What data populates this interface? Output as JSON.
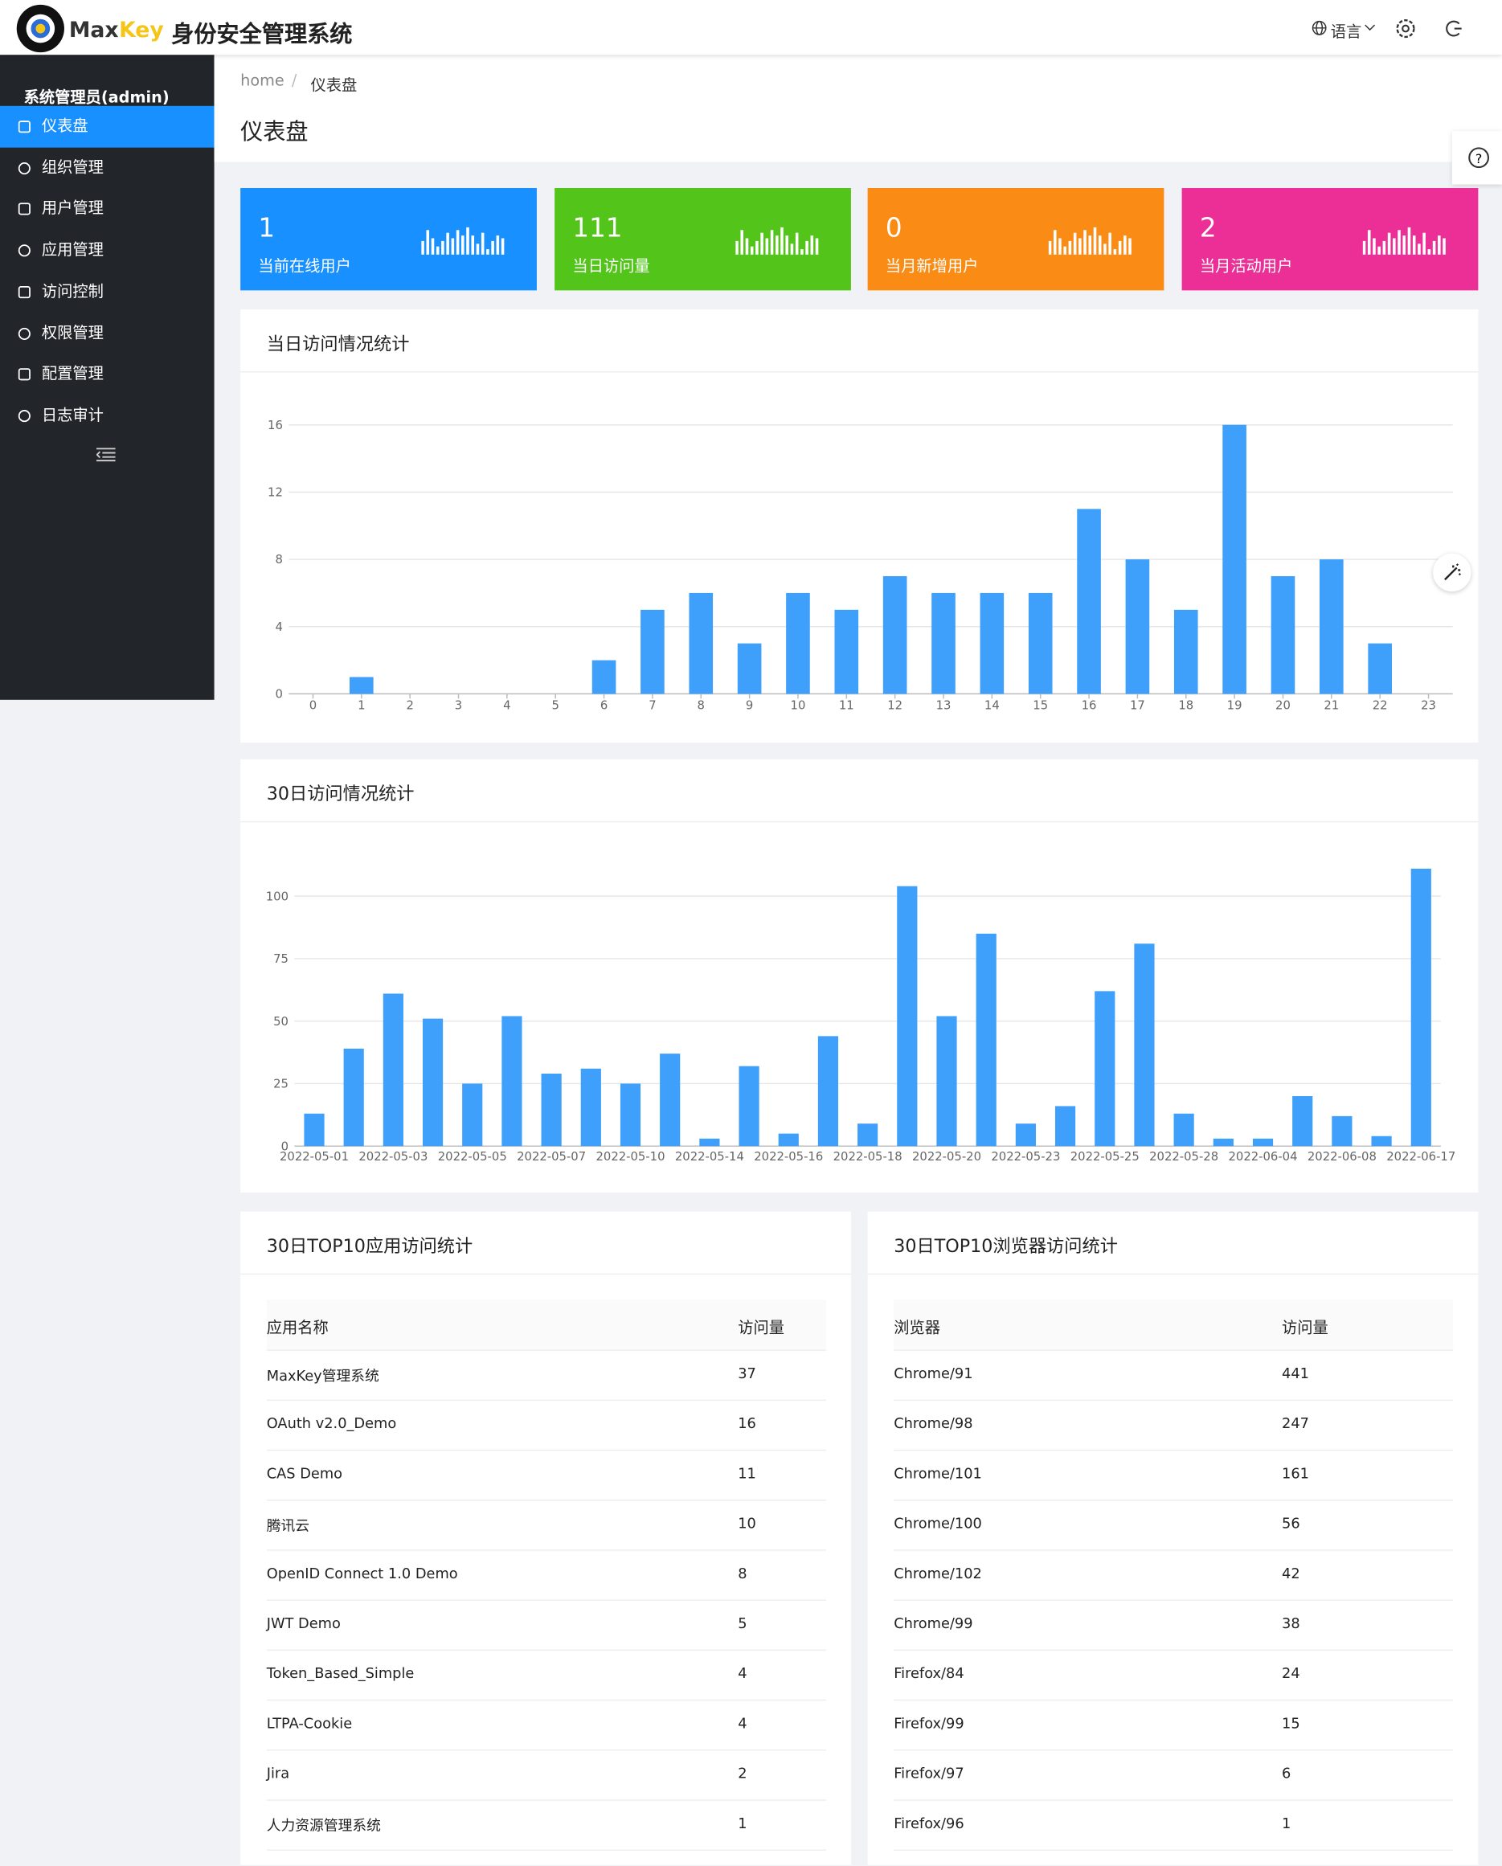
{
  "header": {
    "logo_max": "Max",
    "logo_key": "Key",
    "title": "身份安全管理系统",
    "language": "语言"
  },
  "sidebar": {
    "user": "系统管理员(admin)",
    "menu": [
      "仪表盘",
      "组织管理",
      "用户管理",
      "应用管理",
      "访问控制",
      "权限管理",
      "配置管理",
      "日志审计"
    ]
  },
  "breadcrumb": [
    "home",
    "仪表盘"
  ],
  "page_title": "仪表盘",
  "cards": [
    {
      "value": "1",
      "label": "当前在线用户",
      "color": "#1890ff"
    },
    {
      "value": "111",
      "label": "当日访问量",
      "color": "#52c41a"
    },
    {
      "value": "0",
      "label": "当月新增用户",
      "color": "#fa8c16"
    },
    {
      "value": "2",
      "label": "当月活动用户",
      "color": "#eb2f96"
    }
  ],
  "chart_data": [
    {
      "type": "bar",
      "title": "当日访问情况统计",
      "categories": [
        "0",
        "1",
        "2",
        "3",
        "4",
        "5",
        "6",
        "7",
        "8",
        "9",
        "10",
        "11",
        "12",
        "13",
        "14",
        "15",
        "16",
        "17",
        "18",
        "19",
        "20",
        "21",
        "22",
        "23"
      ],
      "values": [
        0,
        1,
        0,
        0,
        0,
        0,
        2,
        5,
        6,
        3,
        6,
        5,
        7,
        6,
        6,
        6,
        11,
        8,
        5,
        16,
        7,
        8,
        3,
        0
      ],
      "color": "#3fa0fb",
      "ylim": [
        0,
        16
      ],
      "yticks": [
        0,
        4,
        8,
        12,
        16
      ],
      "grid": true
    },
    {
      "type": "bar",
      "title": "30日访问情况统计",
      "categories": [
        "2022-05-01",
        null,
        "2022-05-03",
        null,
        "2022-05-05",
        null,
        "2022-05-07",
        null,
        "2022-05-10",
        null,
        "2022-05-14",
        null,
        "2022-05-16",
        null,
        "2022-05-18",
        null,
        "2022-05-20",
        null,
        "2022-05-23",
        null,
        "2022-05-25",
        null,
        "2022-05-28",
        null,
        "2022-06-04",
        null,
        "2022-06-08",
        null,
        "2022-06-17"
      ],
      "values": [
        13,
        39,
        61,
        51,
        25,
        52,
        29,
        31,
        25,
        37,
        3,
        32,
        5,
        44,
        9,
        104,
        52,
        85,
        9,
        16,
        62,
        81,
        13,
        3,
        3,
        20,
        12,
        4,
        111
      ],
      "color": "#3fa0fb",
      "ylim": [
        0,
        120
      ],
      "yticks": [
        0,
        25,
        50,
        75,
        100
      ],
      "grid": true
    }
  ],
  "tables": [
    {
      "title": "30日TOP10应用访问统计",
      "columns": [
        "应用名称",
        "访问量"
      ],
      "rows": [
        [
          "MaxKey管理系统",
          "37"
        ],
        [
          "OAuth v2.0_Demo",
          "16"
        ],
        [
          "CAS Demo",
          "11"
        ],
        [
          "腾讯云",
          "10"
        ],
        [
          "OpenID Connect 1.0 Demo",
          "8"
        ],
        [
          "JWT Demo",
          "5"
        ],
        [
          "Token_Based_Simple",
          "4"
        ],
        [
          "LTPA-Cookie",
          "4"
        ],
        [
          "Jira",
          "2"
        ],
        [
          "人力资源管理系统",
          "1"
        ]
      ]
    },
    {
      "title": "30日TOP10浏览器访问统计",
      "columns": [
        "浏览器",
        "访问量"
      ],
      "rows": [
        [
          "Chrome/91",
          "441"
        ],
        [
          "Chrome/98",
          "247"
        ],
        [
          "Chrome/101",
          "161"
        ],
        [
          "Chrome/100",
          "56"
        ],
        [
          "Chrome/102",
          "42"
        ],
        [
          "Chrome/99",
          "38"
        ],
        [
          "Firefox/84",
          "24"
        ],
        [
          "Firefox/99",
          "15"
        ],
        [
          "Firefox/97",
          "6"
        ],
        [
          "Firefox/96",
          "1"
        ]
      ]
    }
  ]
}
